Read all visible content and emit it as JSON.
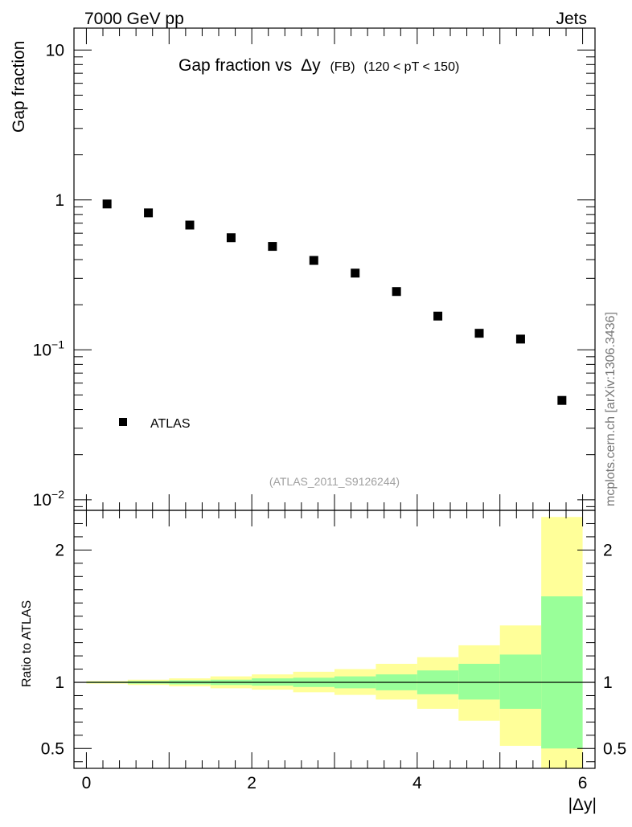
{
  "header": {
    "left": "7000 GeV pp",
    "right": "Jets"
  },
  "title": {
    "main": "Gap fraction vs",
    "delta": "Δy",
    "tag": "(FB)",
    "range": "(120 < pT < 150)"
  },
  "watermark": "mcplots.cern.ch [arXiv:1306.3436]",
  "analysis_label": "(ATLAS_2011_S9126244)",
  "legend": {
    "entries": [
      "ATLAS"
    ]
  },
  "colors": {
    "band_inner": "#99ff99",
    "band_outer": "#ffff99",
    "marker": "#000000"
  },
  "chart_data": [
    {
      "type": "scatter",
      "ylabel": "Gap fraction",
      "xlim": [
        -0.15,
        6.15
      ],
      "ylim": [
        0.0085,
        14
      ],
      "y_log": true,
      "grid": false,
      "legend_position": "bottom-left",
      "y_tick_labels": [
        {
          "value": 0.01,
          "base": "10",
          "exp": "−2"
        },
        {
          "value": 0.1,
          "base": "10",
          "exp": "−1"
        },
        {
          "value": 1,
          "base": "1",
          "exp": ""
        },
        {
          "value": 10,
          "base": "10",
          "exp": ""
        }
      ],
      "series": [
        {
          "name": "ATLAS",
          "x": [
            0.25,
            0.75,
            1.25,
            1.75,
            2.25,
            2.75,
            3.25,
            3.75,
            4.25,
            4.75,
            5.25,
            5.75
          ],
          "y": [
            0.94,
            0.82,
            0.68,
            0.56,
            0.49,
            0.395,
            0.325,
            0.245,
            0.168,
            0.129,
            0.118,
            0.046
          ]
        }
      ]
    },
    {
      "type": "area",
      "ylabel": "Ratio to ATLAS",
      "xlabel": "|Δy|",
      "xlim": [
        -0.15,
        6.15
      ],
      "ylim": [
        0.35,
        2.3
      ],
      "x_tick_labels": [
        "0",
        "2",
        "4",
        "6"
      ],
      "y_tick_labels": [
        "0.5",
        "1",
        "2"
      ],
      "reference_line": 1,
      "bins": [
        {
          "lo": 0.0,
          "hi": 0.5,
          "inner": [
            0.995,
            1.005
          ],
          "outer": [
            0.99,
            1.01
          ]
        },
        {
          "lo": 0.5,
          "hi": 1.0,
          "inner": [
            0.99,
            1.01
          ],
          "outer": [
            0.98,
            1.02
          ]
        },
        {
          "lo": 1.0,
          "hi": 1.5,
          "inner": [
            0.985,
            1.015
          ],
          "outer": [
            0.97,
            1.03
          ]
        },
        {
          "lo": 1.5,
          "hi": 2.0,
          "inner": [
            0.98,
            1.02
          ],
          "outer": [
            0.955,
            1.045
          ]
        },
        {
          "lo": 2.0,
          "hi": 2.5,
          "inner": [
            0.975,
            1.03
          ],
          "outer": [
            0.945,
            1.06
          ]
        },
        {
          "lo": 2.5,
          "hi": 3.0,
          "inner": [
            0.965,
            1.035
          ],
          "outer": [
            0.925,
            1.08
          ]
        },
        {
          "lo": 3.0,
          "hi": 3.5,
          "inner": [
            0.955,
            1.045
          ],
          "outer": [
            0.905,
            1.1
          ]
        },
        {
          "lo": 3.5,
          "hi": 4.0,
          "inner": [
            0.94,
            1.06
          ],
          "outer": [
            0.87,
            1.14
          ]
        },
        {
          "lo": 4.0,
          "hi": 4.5,
          "inner": [
            0.91,
            1.09
          ],
          "outer": [
            0.8,
            1.19
          ]
        },
        {
          "lo": 4.5,
          "hi": 5.0,
          "inner": [
            0.87,
            1.14
          ],
          "outer": [
            0.71,
            1.28
          ]
        },
        {
          "lo": 5.0,
          "hi": 5.5,
          "inner": [
            0.8,
            1.21
          ],
          "outer": [
            0.52,
            1.43
          ]
        },
        {
          "lo": 5.5,
          "hi": 6.0,
          "inner": [
            0.5,
            1.65
          ],
          "outer": [
            0.35,
            2.25
          ]
        }
      ]
    }
  ]
}
